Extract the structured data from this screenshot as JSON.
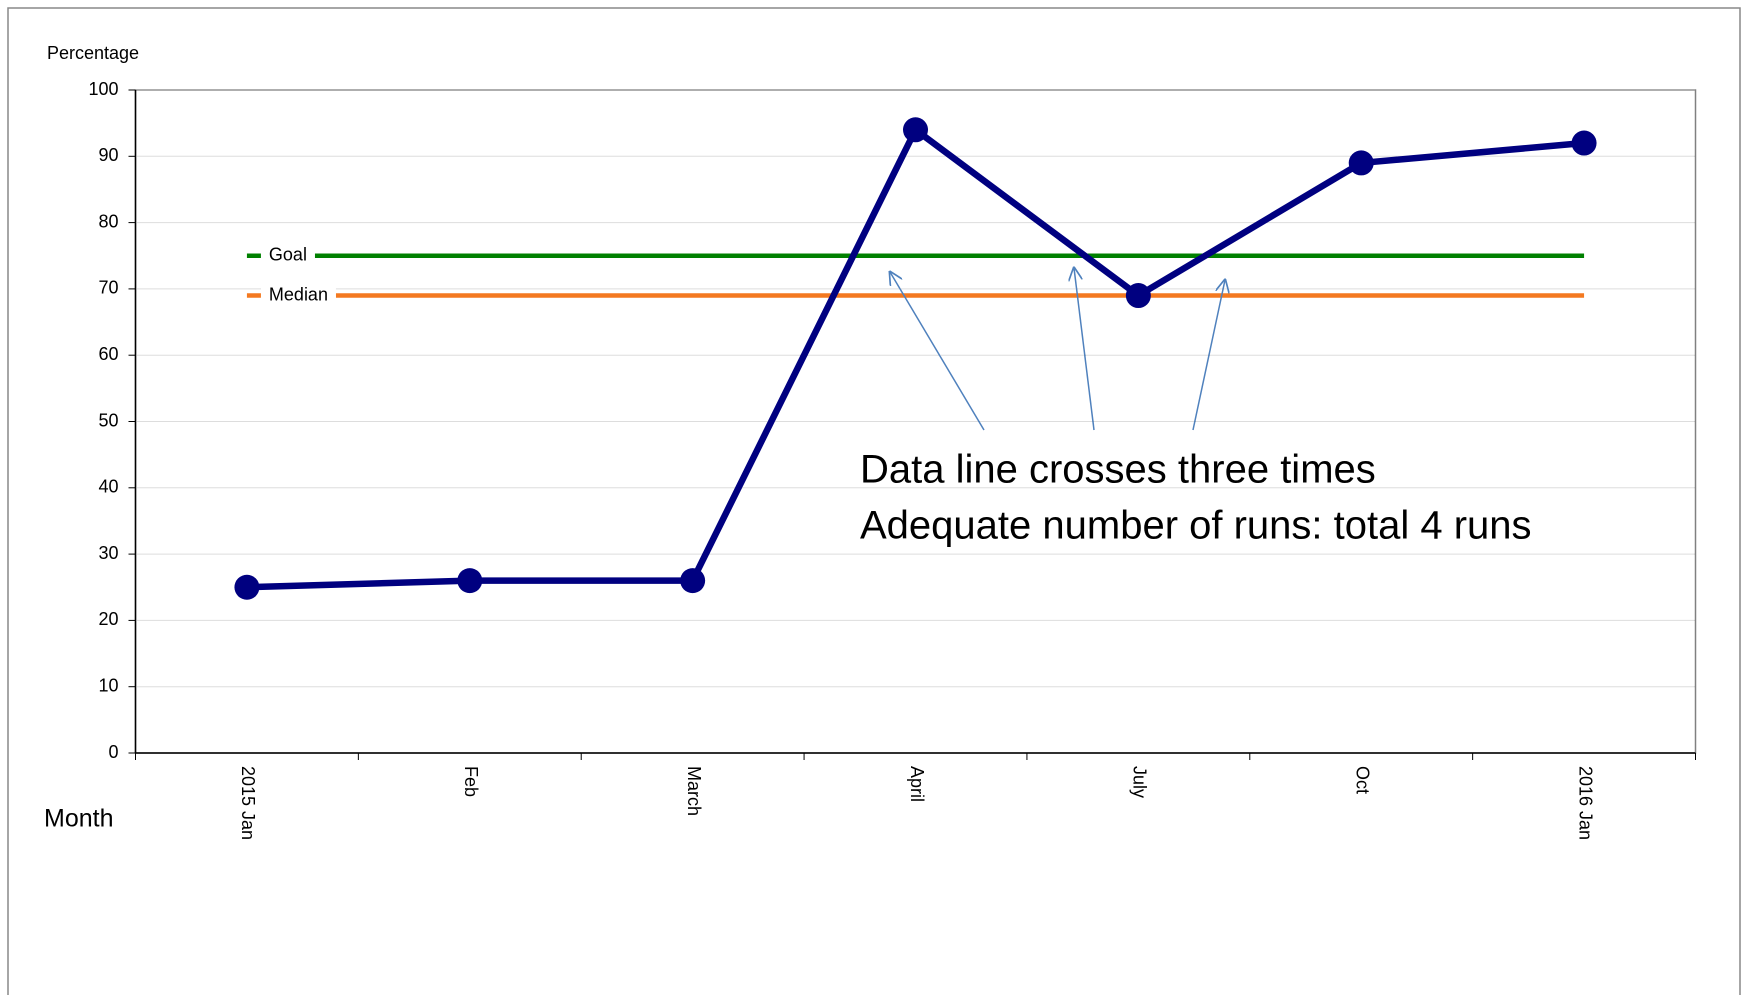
{
  "chart_data": {
    "type": "line",
    "y_axis_label": "Percentage",
    "x_axis_label": "Month",
    "categories": [
      "2015 Jan",
      "Feb",
      "March",
      "April",
      "July",
      "Oct",
      "2016 Jan"
    ],
    "series": [
      {
        "name": "Percentage",
        "color": "#000080",
        "values": [
          25,
          26,
          26,
          94,
          69,
          89,
          92
        ]
      }
    ],
    "reference_lines": [
      {
        "name": "Goal",
        "value": 75,
        "color": "#008000",
        "label_color": "#008000"
      },
      {
        "name": "Median",
        "value": 69,
        "color": "#f47920",
        "label_color": "#ff0000"
      }
    ],
    "annotations": [
      "Data line crosses three times",
      "Adequate number of runs: total 4 runs"
    ],
    "ylim": [
      0,
      100
    ],
    "yticks": [
      0,
      10,
      20,
      30,
      40,
      50,
      60,
      70,
      80,
      90,
      100
    ],
    "grid": true
  }
}
